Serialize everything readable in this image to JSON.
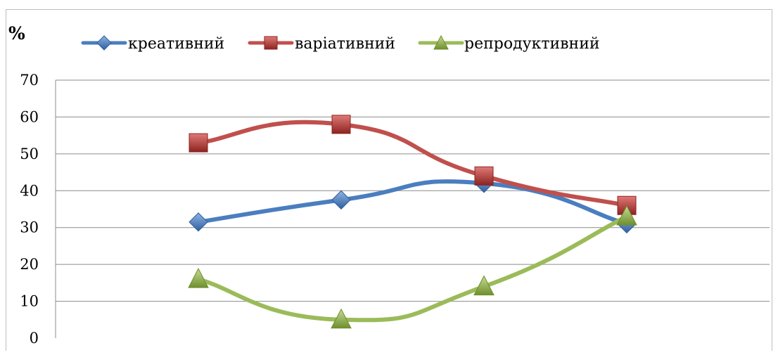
{
  "chart_data": {
    "type": "line",
    "ylabel": "%",
    "ylim": [
      0,
      70
    ],
    "yticks": [
      0,
      10,
      20,
      30,
      40,
      50,
      60,
      70
    ],
    "categories": [
      "",
      "",
      "",
      ""
    ],
    "smooth": true,
    "grid": true,
    "legend_position": "top",
    "series": [
      {
        "name": "креативний",
        "color": "#4a7ebf",
        "marker": "diamond",
        "values": [
          31.5,
          37.5,
          42,
          31
        ]
      },
      {
        "name": "варіативний",
        "color": "#c0504d",
        "marker": "square",
        "values": [
          53,
          58,
          44,
          36
        ]
      },
      {
        "name": "репродуктивний",
        "color": "#9bbb59",
        "marker": "triangle",
        "values": [
          16,
          5,
          14,
          33
        ]
      }
    ]
  }
}
